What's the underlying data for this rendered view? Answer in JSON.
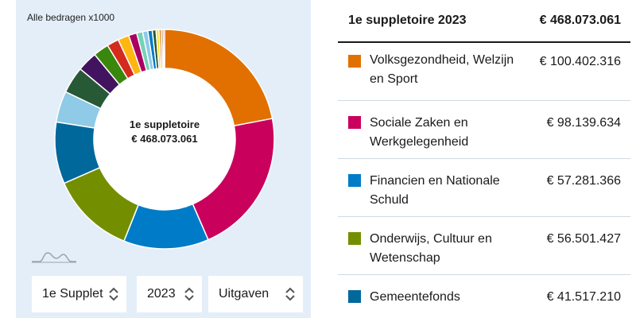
{
  "note": "Alle bedragen x1000",
  "center": {
    "line1": "1e suppletoire",
    "line2": "€ 468.073.061"
  },
  "selects": [
    {
      "value": "1e Supplet"
    },
    {
      "value": "2023"
    },
    {
      "value": "Uitgaven"
    }
  ],
  "table": {
    "header_label": "1e suppletoire 2023",
    "header_total": "€ 468.073.061",
    "rows": [
      {
        "label": "Volksgezondheid, Welzijn en Sport",
        "value": "€ 100.402.316",
        "color": "#e17000"
      },
      {
        "label": "Sociale Zaken en Werkgelegenheid",
        "value": "€ 98.139.634",
        "color": "#ca005d"
      },
      {
        "label": "Financien en Nationale Schuld",
        "value": "€ 57.281.366",
        "color": "#007bc7"
      },
      {
        "label": "Onderwijs, Cultuur en Wetenschap",
        "value": "€ 56.501.427",
        "color": "#738f00"
      },
      {
        "label": "Gemeentefonds",
        "value": "€ 41.517.210",
        "color": "#01689b"
      }
    ]
  },
  "chart_data": {
    "type": "pie",
    "variant": "donut",
    "total": 468073061,
    "unit": "x1000 EUR",
    "slices": [
      {
        "label": "Volksgezondheid, Welzijn en Sport",
        "value": 100402316,
        "color": "#e17000"
      },
      {
        "label": "Sociale Zaken en Werkgelegenheid",
        "value": 98139634,
        "color": "#ca005d"
      },
      {
        "label": "Financien en Nationale Schuld",
        "value": 57281366,
        "color": "#007bc7"
      },
      {
        "label": "Onderwijs, Cultuur en Wetenschap",
        "value": 56501427,
        "color": "#738f00"
      },
      {
        "label": "Gemeentefonds",
        "value": 41517210,
        "color": "#01689b"
      },
      {
        "value": 21000000,
        "color": "#8fcae7"
      },
      {
        "value": 18000000,
        "color": "#275937"
      },
      {
        "value": 13500000,
        "color": "#42145f"
      },
      {
        "value": 10500000,
        "color": "#39870c"
      },
      {
        "value": 8000000,
        "color": "#d52b1e"
      },
      {
        "value": 7500000,
        "color": "#ffb612"
      },
      {
        "value": 5500000,
        "color": "#a90061"
      },
      {
        "value": 4000000,
        "color": "#76d2b6"
      },
      {
        "value": 3500000,
        "color": "#8fcae7"
      },
      {
        "value": 3000000,
        "color": "#007bc7"
      },
      {
        "value": 2500000,
        "color": "#275937"
      },
      {
        "value": 2000000,
        "color": "#f9e11e"
      },
      {
        "value": 1500000,
        "color": "#e17000"
      },
      {
        "value": 1200000,
        "color": "#94710a"
      },
      {
        "value": 1000000,
        "color": "#ca005d"
      }
    ]
  }
}
